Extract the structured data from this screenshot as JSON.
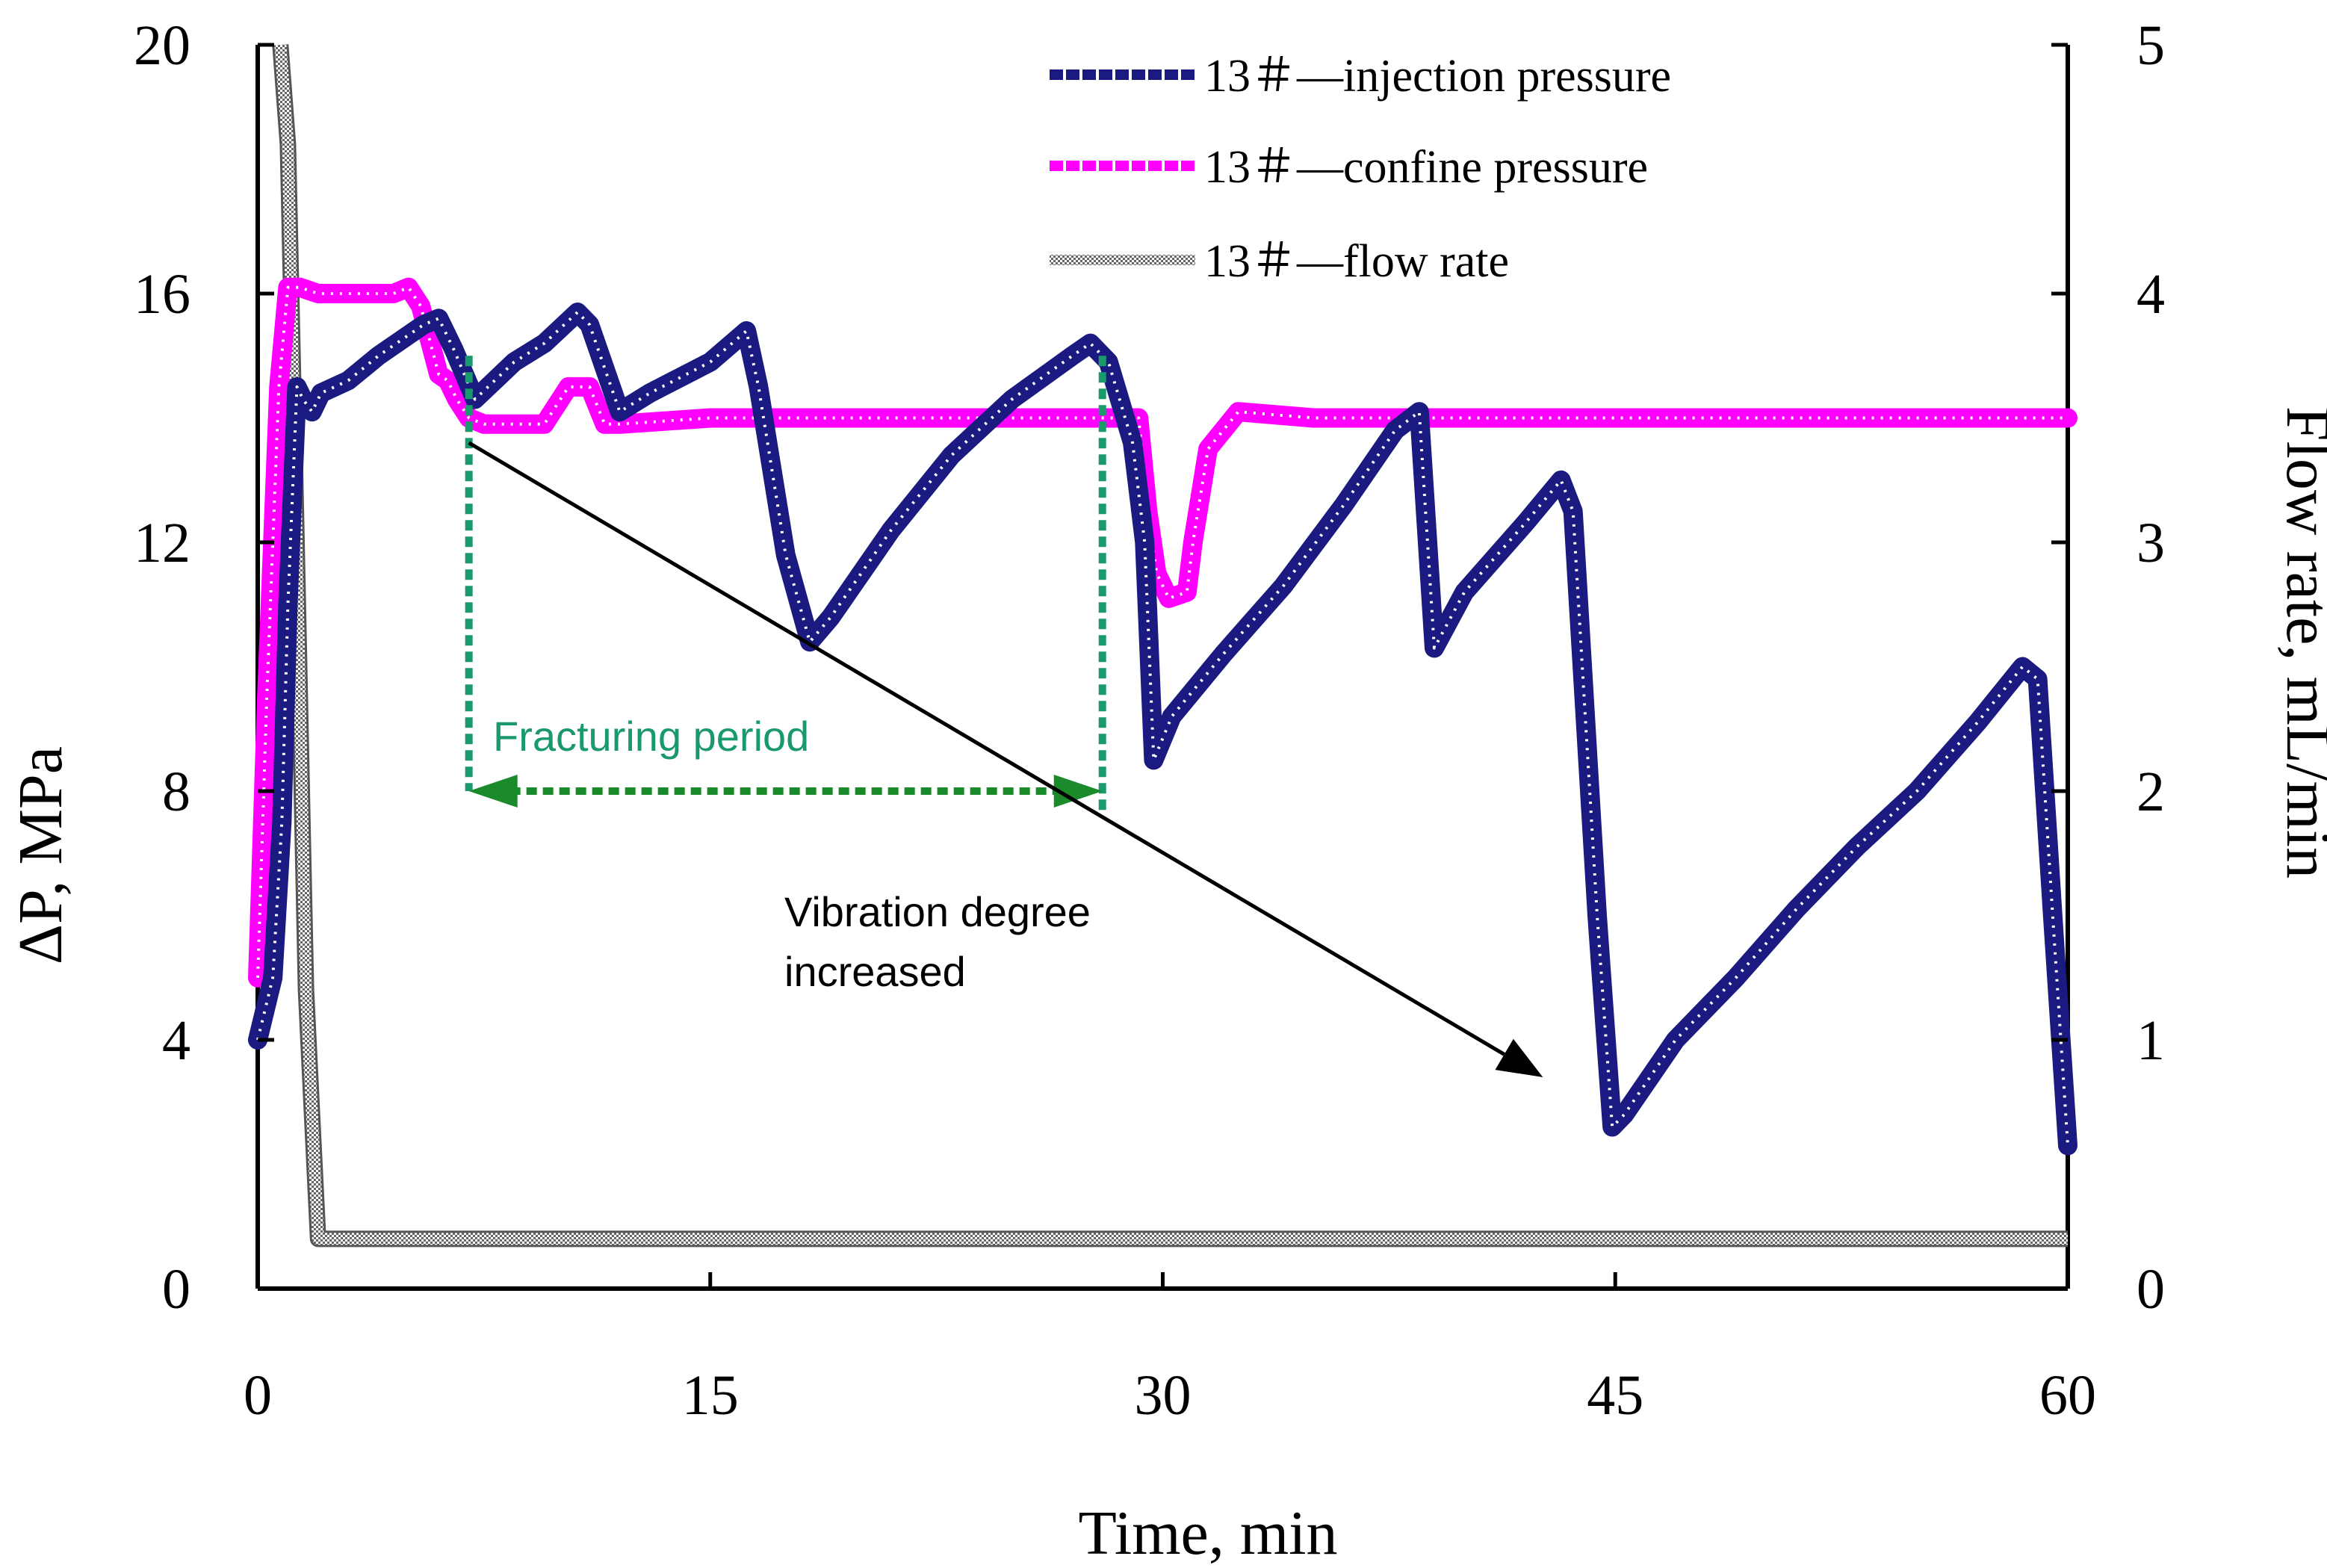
{
  "colors": {
    "injection": "#1a1a80",
    "confine": "#ff00ff",
    "flow": "#7f7f7f",
    "fracturing": "#1a9a6c",
    "fracturing_arrow": "#1a8a2a",
    "axis": "#000000"
  },
  "chart_data": {
    "type": "line",
    "xlabel": "Time, min",
    "ylabel_left": "ΔP, MPa",
    "ylabel_right": "Flow rate, mL/min",
    "x_range": [
      0,
      60
    ],
    "y_left_range": [
      0,
      20
    ],
    "y_right_range": [
      0,
      5
    ],
    "x_ticks": [
      0,
      15,
      30,
      45,
      60
    ],
    "y_left_ticks": [
      0,
      4,
      8,
      12,
      16,
      20
    ],
    "y_right_ticks": [
      0,
      1,
      2,
      3,
      4,
      5
    ],
    "legend": [
      {
        "label": "13＃—injection pressure",
        "series": "injection"
      },
      {
        "label": "13＃—confine pressure",
        "series": "confine"
      },
      {
        "label": "13＃—flow rate",
        "series": "flow"
      }
    ],
    "series": [
      {
        "name": "13＃—injection pressure",
        "key": "injection",
        "axis": "left",
        "x": [
          0,
          0.5,
          0.8,
          1.0,
          1.3,
          1.5,
          1.8,
          2.1,
          3,
          4,
          5.5,
          6.0,
          6.5,
          7.2,
          8.5,
          9.5,
          10.6,
          11.0,
          12.0,
          13.0,
          15.0,
          16.2,
          16.6,
          17.5,
          18.3,
          19.0,
          21.0,
          23.0,
          25.0,
          27.0,
          27.6,
          28.2,
          29.0,
          29.4,
          29.7,
          30.3,
          32.0,
          34.0,
          36.0,
          37.7,
          38.5,
          39.0,
          40.0,
          42.0,
          43.2,
          43.6,
          44.4,
          44.9,
          45.3,
          47.0,
          49.0,
          51.0,
          53.0,
          55.0,
          57.0,
          58.5,
          59.0,
          59.5,
          60
        ],
        "y": [
          4,
          5,
          7.5,
          11,
          14.5,
          14.3,
          14.1,
          14.4,
          14.6,
          15.0,
          15.5,
          15.6,
          15.1,
          14.3,
          14.9,
          15.2,
          15.7,
          15.5,
          14.1,
          14.4,
          14.9,
          15.4,
          14.5,
          11.8,
          10.4,
          10.8,
          12.2,
          13.4,
          14.3,
          15.0,
          15.2,
          14.9,
          13.6,
          12.0,
          8.5,
          9.2,
          10.2,
          11.3,
          12.6,
          13.8,
          14.1,
          10.3,
          11.2,
          12.3,
          13.0,
          12.5,
          6.0,
          2.6,
          2.8,
          4.0,
          5.0,
          6.1,
          7.1,
          8.0,
          9.1,
          10.0,
          9.8,
          6.0,
          2.3
        ]
      },
      {
        "name": "13＃—confine pressure",
        "key": "confine",
        "axis": "left",
        "x": [
          0,
          0.3,
          0.7,
          1.0,
          1.4,
          2.0,
          3.5,
          4.5,
          5.0,
          5.4,
          6.0,
          6.3,
          6.6,
          7.0,
          7.5,
          9.5,
          10.3,
          11.0,
          11.5,
          12.0,
          15.0,
          20.0,
          25.0,
          28.0,
          29.2,
          29.5,
          29.8,
          30.2,
          30.8,
          31.0,
          31.5,
          32.5,
          35.0,
          40.0,
          45.0,
          50.0,
          55.0,
          60
        ],
        "y": [
          5,
          9.5,
          14.5,
          16.1,
          16.1,
          16.0,
          16.0,
          16.0,
          16.1,
          15.8,
          14.7,
          14.6,
          14.3,
          14.0,
          13.9,
          13.9,
          14.5,
          14.5,
          13.9,
          13.9,
          14.0,
          14.0,
          14.0,
          14.0,
          14.0,
          12.5,
          11.5,
          11.1,
          11.2,
          12.0,
          13.5,
          14.1,
          14.0,
          14.0,
          14.0,
          14.0,
          14.0,
          14.0
        ]
      },
      {
        "name": "13＃—flow rate",
        "key": "flow",
        "axis": "right",
        "x": [
          0.75,
          1.0,
          1.2,
          1.6,
          2.0,
          60
        ],
        "y": [
          5,
          4.6,
          3.5,
          1.2,
          0.2,
          0.2
        ]
      }
    ],
    "annotations": {
      "fracturing_label": "Fracturing period",
      "fracturing_start": 7,
      "fracturing_end": 28,
      "fracturing_level": 8,
      "fracturing_vline1_top": 15,
      "fracturing_vline2_top": 15,
      "vibration_line1": "Vibration degree",
      "vibration_line2": "increased",
      "vibration_arrow_from": [
        7,
        13.6
      ],
      "vibration_arrow_to": [
        42.6,
        3.4
      ]
    }
  }
}
